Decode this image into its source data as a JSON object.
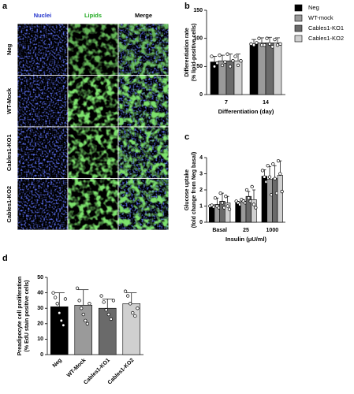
{
  "panel_labels": [
    "a",
    "b",
    "c",
    "d"
  ],
  "images": {
    "columns": [
      "Nuclei",
      "Lipids",
      "Merge"
    ],
    "rows": [
      "Neg",
      "WT-Mock",
      "Cables1-KO1",
      "Cables1-KO2"
    ]
  },
  "chart_data": [
    {
      "type": "bar",
      "y_label": [
        "Differentiation rate",
        "(% lipid-positive cells)"
      ],
      "x_label": "Differentiation (day)",
      "categories": [
        "7",
        "14"
      ],
      "ylim": [
        0,
        150
      ],
      "yticks": [
        0,
        50,
        100,
        150
      ],
      "legend": "right",
      "series": [
        {
          "name": "Neg",
          "color": "#000000",
          "values": [
            58,
            90
          ],
          "errors": [
            10,
            8
          ],
          "points": [
            [
              68,
              50,
              56
            ],
            [
              90,
              88,
              92
            ]
          ]
        },
        {
          "name": "WT-mock",
          "color": "#9a9a9a",
          "values": [
            60,
            92
          ],
          "errors": [
            10,
            9
          ],
          "points": [
            [
              70,
              52,
              58
            ],
            [
              100,
              88,
              88
            ]
          ]
        },
        {
          "name": "Cables1-KO1",
          "color": "#6a6a6a",
          "values": [
            60,
            92
          ],
          "errors": [
            12,
            10
          ],
          "points": [
            [
              72,
              50,
              60
            ],
            [
              100,
              90,
              85
            ]
          ]
        },
        {
          "name": "Cables1-KO2",
          "color": "#d0d0d0",
          "values": [
            60,
            92
          ],
          "errors": [
            12,
            9
          ],
          "points": [
            [
              68,
              52,
              60
            ],
            [
              98,
              88,
              90
            ]
          ]
        }
      ]
    },
    {
      "type": "bar",
      "y_label": [
        "Glucose uptake",
        "(fold change from Neg basal)"
      ],
      "x_label": "Insulin (μU/ml)",
      "categories": [
        "Basal",
        "25",
        "1000"
      ],
      "ylim": [
        0,
        4
      ],
      "yticks": [
        0,
        1,
        2,
        3,
        4
      ],
      "series": [
        {
          "name": "Neg",
          "color": "#000000",
          "values": [
            1.0,
            1.2,
            2.85
          ],
          "errors": [
            0.1,
            0.1,
            0.4
          ],
          "points": [
            [
              1.0,
              1.05,
              0.95
            ],
            [
              1.3,
              1.2,
              1.1
            ],
            [
              3.2,
              2.8,
              2.5
            ]
          ]
        },
        {
          "name": "WT-mock",
          "color": "#9a9a9a",
          "values": [
            1.1,
            1.3,
            2.65
          ],
          "errors": [
            0.4,
            0.1,
            0.8
          ],
          "points": [
            [
              1.5,
              1.0,
              0.9
            ],
            [
              1.4,
              1.3,
              1.2
            ],
            [
              3.5,
              2.8,
              1.7
            ]
          ]
        },
        {
          "name": "Cables1-KO1",
          "color": "#6a6a6a",
          "values": [
            1.3,
            1.6,
            2.7
          ],
          "errors": [
            0.5,
            0.3,
            0.8
          ],
          "points": [
            [
              1.8,
              1.2,
              0.9
            ],
            [
              2.0,
              1.5,
              1.3
            ],
            [
              3.6,
              2.7,
              1.8
            ]
          ]
        },
        {
          "name": "Cables1-KO2",
          "color": "#d0d0d0",
          "values": [
            1.2,
            1.4,
            2.9
          ],
          "errors": [
            0.4,
            0.6,
            0.9
          ],
          "points": [
            [
              1.6,
              1.0,
              0.8
            ],
            [
              2.2,
              1.1,
              0.9
            ],
            [
              3.8,
              3.0,
              1.9
            ]
          ]
        }
      ]
    },
    {
      "type": "bar",
      "y_label": [
        "Preadipocyte cell proliferation",
        "(% EdU stain positive cells)"
      ],
      "categories": [
        "Neg",
        "WT-Mock",
        "Cables1-KO1",
        "Cables1-KO2"
      ],
      "ylim": [
        0,
        50
      ],
      "yticks": [
        0,
        10,
        20,
        30,
        40,
        50
      ],
      "values": [
        31,
        32,
        30,
        33
      ],
      "errors": [
        9,
        10,
        6,
        7
      ],
      "colors": [
        "#000000",
        "#9a9a9a",
        "#6a6a6a",
        "#d0d0d0"
      ],
      "points": [
        [
          40,
          37,
          33,
          27,
          22,
          19,
          36
        ],
        [
          43,
          35,
          30,
          26,
          22,
          20,
          33
        ],
        [
          38,
          34,
          29,
          26,
          23,
          35
        ],
        [
          41,
          38,
          33,
          27,
          25,
          30
        ]
      ]
    }
  ]
}
